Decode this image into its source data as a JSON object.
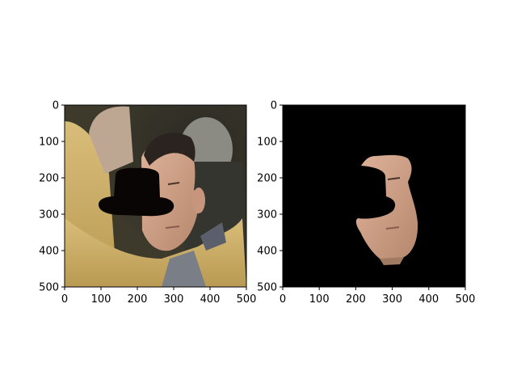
{
  "chart_data": [
    {
      "type": "image",
      "title": "",
      "xlabel": "",
      "ylabel": "",
      "xlim": [
        0,
        500
      ],
      "ylim": [
        500,
        0
      ],
      "x_ticks": [
        "0",
        "100",
        "200",
        "300",
        "400",
        "500"
      ],
      "y_ticks": [
        "0",
        "100",
        "200",
        "300",
        "400",
        "500"
      ],
      "content": "photo-with-black-hat-overlay"
    },
    {
      "type": "image",
      "title": "",
      "xlabel": "",
      "ylabel": "",
      "xlim": [
        0,
        500
      ],
      "ylim": [
        500,
        0
      ],
      "x_ticks": [
        "0",
        "100",
        "200",
        "300",
        "400",
        "500"
      ],
      "y_ticks": [
        "0",
        "100",
        "200",
        "300",
        "400",
        "500"
      ],
      "content": "segmented-face-on-black"
    }
  ],
  "colors": {
    "axis": "#000000",
    "background": "#ffffff",
    "hat": "#0a0505",
    "jacket": "#c9ae6a",
    "skin": "#c9a089",
    "mask_bg": "#000000"
  }
}
